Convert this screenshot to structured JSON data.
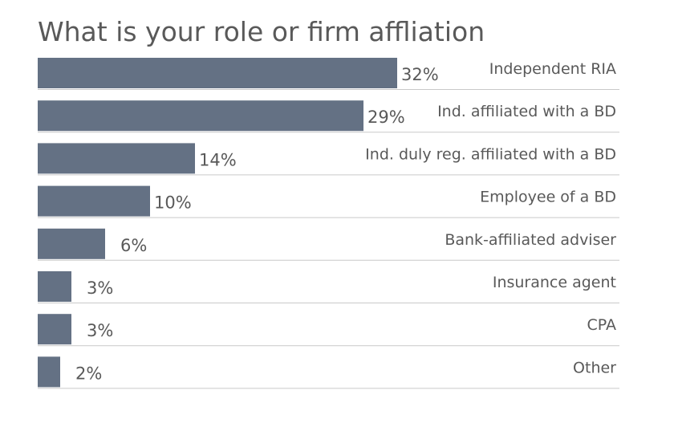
{
  "chart_data": {
    "type": "bar",
    "orientation": "horizontal",
    "title": "What is your role or firm affliation",
    "categories": [
      "Independent RIA",
      "Ind. affiliated with a BD",
      "Ind. duly reg. affiliated with a BD",
      "Employee of a BD",
      "Bank-affiliated adviser",
      "Insurance agent",
      "CPA",
      "Other"
    ],
    "values": [
      32,
      29,
      14,
      10,
      6,
      3,
      3,
      2
    ],
    "value_labels": [
      "32%",
      "29%",
      "14%",
      "10%",
      "6%",
      "3%",
      "3%",
      "2%"
    ],
    "unit": "%",
    "xlim": [
      0,
      32
    ],
    "grid": false,
    "bar_color": "#647184",
    "separator_color": "#c9c9c9"
  }
}
